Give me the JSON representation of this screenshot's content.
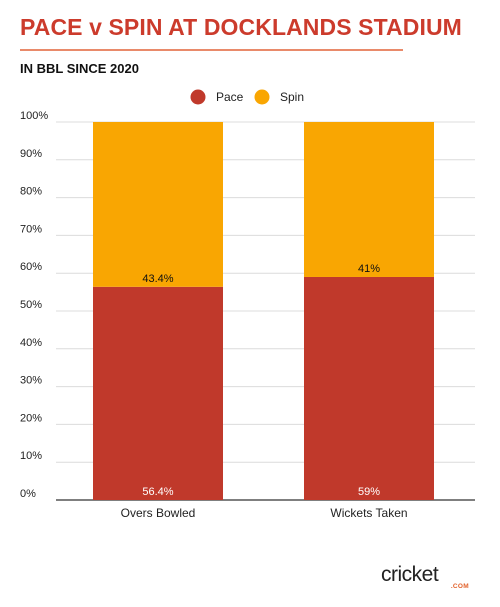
{
  "header": {
    "title": "PACE v SPIN AT DOCKLANDS STADIUM",
    "subtitle": "IN BBL SINCE 2020"
  },
  "brand": {
    "logo_text": "cricket",
    "logo_suffix": ".COM"
  },
  "colors": {
    "pace": "#c0392b",
    "spin": "#f9a602",
    "accent": "#cc3b2c"
  },
  "chart_data": {
    "type": "bar",
    "stacked": true,
    "title": "PACE v SPIN AT DOCKLANDS STADIUM",
    "subtitle": "IN BBL SINCE 2020",
    "categories": [
      "Overs Bowled",
      "Wickets Taken"
    ],
    "series": [
      {
        "name": "Pace",
        "values": [
          56.4,
          59
        ],
        "labels": [
          "56.4%",
          "59%"
        ],
        "color": "#c0392b"
      },
      {
        "name": "Spin",
        "values": [
          43.4,
          41
        ],
        "labels": [
          "43.4%",
          "41%"
        ],
        "color": "#f9a602"
      }
    ],
    "xlabel": "",
    "ylabel": "",
    "ylim": [
      0,
      100
    ],
    "yticks": [
      "0%",
      "10%",
      "20%",
      "30%",
      "40%",
      "50%",
      "60%",
      "70%",
      "80%",
      "90%",
      "100%"
    ],
    "grid": true,
    "legend": "top-center"
  }
}
